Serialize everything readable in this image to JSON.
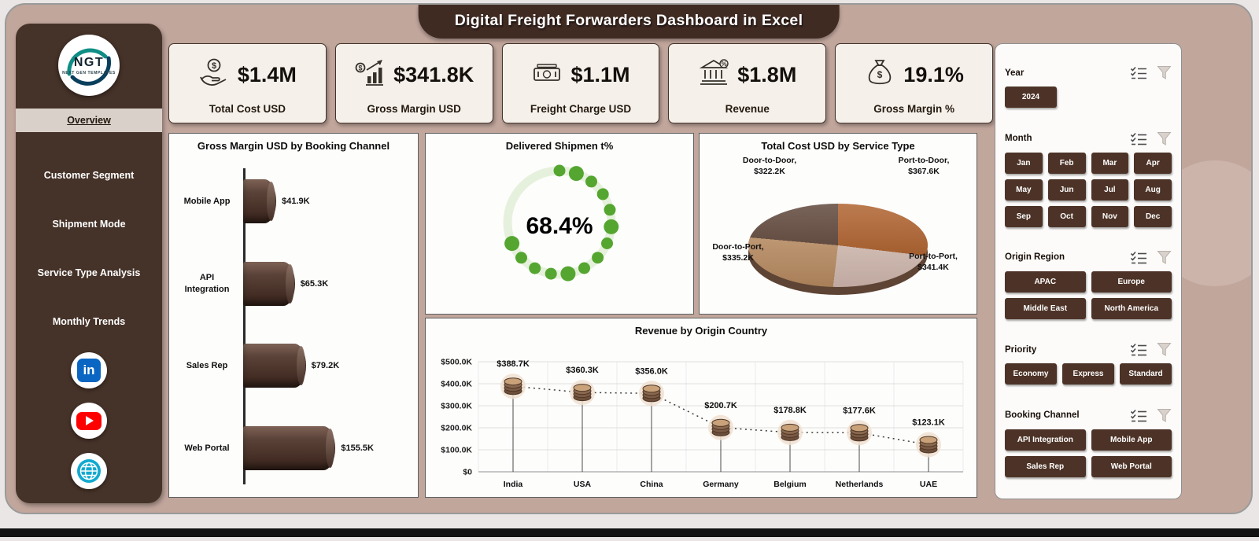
{
  "title": "Digital Freight Forwarders Dashboard in Excel",
  "sidebar": {
    "logo_text": "NGT",
    "logo_subtext": "NEXT GEN TEMPLATES",
    "items": [
      {
        "label": "Overview",
        "active": true
      },
      {
        "label": "Customer Segment",
        "active": false
      },
      {
        "label": "Shipment Mode",
        "active": false
      },
      {
        "label": "Service Type Analysis",
        "active": false
      },
      {
        "label": "Monthly Trends",
        "active": false
      }
    ],
    "socials": [
      "linkedin",
      "youtube",
      "website"
    ]
  },
  "kpis": [
    {
      "icon": "hand-coin-icon",
      "value": "$1.4M",
      "label": "Total Cost USD"
    },
    {
      "icon": "growth-bars-icon",
      "value": "$341.8K",
      "label": "Gross Margin USD"
    },
    {
      "icon": "banknotes-icon",
      "value": "$1.1M",
      "label": "Freight Charge USD"
    },
    {
      "icon": "bank-icon",
      "value": "$1.8M",
      "label": "Revenue"
    },
    {
      "icon": "money-bag-icon",
      "value": "19.1%",
      "label": "Gross Margin %"
    }
  ],
  "filters": [
    {
      "label": "Year",
      "columns": 3,
      "options": [
        "2024"
      ]
    },
    {
      "label": "Month",
      "columns": 4,
      "options": [
        "Jan",
        "Feb",
        "Mar",
        "Apr",
        "May",
        "Jun",
        "Jul",
        "Aug",
        "Sep",
        "Oct",
        "Nov",
        "Dec"
      ]
    },
    {
      "label": "Origin Region",
      "columns": 2,
      "options": [
        "APAC",
        "Europe",
        "Middle East",
        "North America"
      ]
    },
    {
      "label": "Priority",
      "columns": 3,
      "options": [
        "Economy",
        "Express",
        "Standard"
      ]
    },
    {
      "label": "Booking Channel",
      "columns": 2,
      "options": [
        "API Integration",
        "Mobile App",
        "Sales Rep",
        "Web Portal"
      ]
    }
  ],
  "chart_data": [
    {
      "type": "bar",
      "title": "Gross Margin USD by Booking Channel",
      "orientation": "horizontal",
      "categories": [
        "Mobile App",
        "API Integration",
        "Sales Rep",
        "Web Portal"
      ],
      "values": [
        41.9,
        65.3,
        79.2,
        155.5
      ],
      "value_labels": [
        "$41.9K",
        "$65.3K",
        "$79.2K",
        "$155.5K"
      ],
      "unit": "K USD",
      "xlim": [
        0,
        165
      ]
    },
    {
      "type": "donut",
      "title": "Delivered Shipmen t%",
      "value": 68.4,
      "label": "68.4%",
      "color": "#55a630",
      "track_color": "#e6f1dd"
    },
    {
      "type": "pie",
      "title": "Total Cost USD by Service Type",
      "slices": [
        {
          "name": "Port-to-Door",
          "value": 367.6,
          "label": "Port-to-Door, $367.6K",
          "color": "#a9561e"
        },
        {
          "name": "Port-to-Port",
          "value": 341.4,
          "label": "Port-to-Port, $341.4K",
          "color": "#d9c0b6"
        },
        {
          "name": "Door-to-Port",
          "value": 335.2,
          "label": "Door-to-Port, $335.2K",
          "color": "#bf9064"
        },
        {
          "name": "Door-to-Door",
          "value": 322.2,
          "label": "Door-to-Door, $322.2K",
          "color": "#54392c"
        }
      ]
    },
    {
      "type": "line",
      "title": "Revenue by Origin Country",
      "categories": [
        "India",
        "USA",
        "China",
        "Germany",
        "Belgium",
        "Netherlands",
        "UAE"
      ],
      "values": [
        388.7,
        360.3,
        356.0,
        200.7,
        178.8,
        177.6,
        123.1
      ],
      "value_labels": [
        "$388.7K",
        "$360.3K",
        "$356.0K",
        "$200.7K",
        "$178.8K",
        "$177.6K",
        "$123.1K"
      ],
      "ylim": [
        0,
        500
      ],
      "ytick_labels": [
        "$0",
        "$100.0K",
        "$200.0K",
        "$300.0K",
        "$400.0K",
        "$500.0K"
      ]
    }
  ],
  "colors": {
    "accent_green": "#55a630",
    "dark_brown": "#453228",
    "background_mauve": "#c1a69c",
    "button_brown": "#4d3327"
  }
}
